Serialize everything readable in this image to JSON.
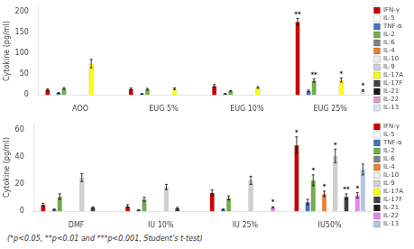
{
  "chart_data": [
    {
      "type": "bar",
      "categories": [
        "AOO",
        "EUG 5%",
        "EUG 10%",
        "EUG 25%"
      ],
      "y_label": "Cytokine (pg/ml)",
      "ylim": [
        0,
        210
      ],
      "yticks": [
        0,
        50,
        100,
        150,
        200
      ],
      "grid": false,
      "legend": "right",
      "series": [
        {
          "name": "IFN-γ",
          "color": "#cc0000",
          "values": [
            13,
            15,
            22,
            175
          ],
          "errors": [
            2,
            2,
            3,
            8
          ]
        },
        {
          "name": "IL-5",
          "color": "#ffffff",
          "values": [
            0,
            0,
            0,
            0
          ],
          "errors": [
            0,
            0,
            0,
            0
          ]
        },
        {
          "name": "TNF-α",
          "color": "#4472c4",
          "values": [
            5,
            3,
            3,
            10
          ],
          "errors": [
            1,
            0.5,
            0.5,
            2
          ]
        },
        {
          "name": "IL-2",
          "color": "#70ad47",
          "values": [
            16,
            14,
            10,
            35
          ],
          "errors": [
            2,
            2,
            1,
            4
          ]
        },
        {
          "name": "IL-6",
          "color": "#808080",
          "values": [
            0,
            0,
            0,
            0
          ],
          "errors": [
            0,
            0,
            0,
            0
          ]
        },
        {
          "name": "IL-4",
          "color": "#ed7d31",
          "values": [
            0,
            0,
            0,
            0
          ],
          "errors": [
            0,
            0,
            0,
            0
          ]
        },
        {
          "name": "IL-10",
          "color": "#eeeeee",
          "values": [
            0,
            0,
            0,
            0
          ],
          "errors": [
            0,
            0,
            0,
            0
          ]
        },
        {
          "name": "IL-9",
          "color": "#d0d0d0",
          "values": [
            0,
            0,
            0,
            0
          ],
          "errors": [
            0,
            0,
            0,
            0
          ]
        },
        {
          "name": "IL-17A",
          "color": "#ffff00",
          "values": [
            75,
            15,
            18,
            36
          ],
          "errors": [
            10,
            2,
            2,
            5
          ]
        },
        {
          "name": "IL-17F",
          "color": "#404040",
          "values": [
            0,
            0,
            0,
            0
          ],
          "errors": [
            0,
            0,
            0,
            0
          ]
        },
        {
          "name": "IL-21",
          "color": "#1a1a1a",
          "values": [
            0,
            0,
            0,
            0
          ],
          "errors": [
            0,
            0,
            0,
            0
          ]
        },
        {
          "name": "IL-22",
          "color": "#d9a0c8",
          "values": [
            0,
            0,
            0,
            0
          ],
          "errors": [
            0,
            0,
            0,
            0
          ]
        },
        {
          "name": "IL-13",
          "color": "#dce6f1",
          "values": [
            0,
            0,
            0,
            11
          ],
          "errors": [
            0,
            0,
            0,
            2
          ]
        }
      ],
      "annotations": [
        {
          "category": "EUG 25%",
          "series": "IFN-γ",
          "text": "**"
        },
        {
          "category": "EUG 25%",
          "series": "IL-2",
          "text": "**"
        },
        {
          "category": "EUG 25%",
          "series": "IL-17A",
          "text": "*"
        },
        {
          "category": "EUG 25%",
          "series": "IL-13",
          "text": "*"
        }
      ]
    },
    {
      "type": "bar",
      "categories": [
        "DMF",
        "IU 10%",
        "IU 25%",
        "IU50%"
      ],
      "y_label": "Cytokine (pg/ml)",
      "ylim": [
        0,
        65
      ],
      "yticks": [
        0,
        20,
        40,
        60
      ],
      "grid": false,
      "legend": "right",
      "series": [
        {
          "name": "IFN-γ",
          "color": "#cc0000",
          "values": [
            5,
            4,
            14,
            49
          ],
          "errors": [
            1,
            1,
            2,
            6
          ]
        },
        {
          "name": "IL-5",
          "color": "#ffffff",
          "values": [
            0,
            0,
            0,
            0
          ],
          "errors": [
            0,
            0,
            0,
            0
          ]
        },
        {
          "name": "TNF-α",
          "color": "#4472c4",
          "values": [
            1.5,
            1,
            1.5,
            7
          ],
          "errors": [
            0.3,
            0.2,
            0.3,
            2
          ]
        },
        {
          "name": "IL-2",
          "color": "#70ad47",
          "values": [
            11,
            9,
            10,
            23
          ],
          "errors": [
            2,
            1.5,
            1.5,
            4
          ]
        },
        {
          "name": "IL-6",
          "color": "#808080",
          "values": [
            0,
            0,
            0,
            0
          ],
          "errors": [
            0,
            0,
            0,
            0
          ]
        },
        {
          "name": "IL-4",
          "color": "#ed7d31",
          "values": [
            0,
            0,
            0,
            13
          ],
          "errors": [
            0,
            0,
            0,
            2
          ]
        },
        {
          "name": "IL-10",
          "color": "#eeeeee",
          "values": [
            0,
            0,
            0,
            0
          ],
          "errors": [
            0,
            0,
            0,
            0
          ]
        },
        {
          "name": "IL-9",
          "color": "#d0d0d0",
          "values": [
            25,
            18,
            23,
            41
          ],
          "errors": [
            3,
            2,
            3,
            5
          ]
        },
        {
          "name": "IL-17A",
          "color": "#ffff00",
          "values": [
            0,
            0,
            0,
            0
          ],
          "errors": [
            0,
            0,
            0,
            0
          ]
        },
        {
          "name": "IL-17F",
          "color": "#404040",
          "values": [
            3,
            2.5,
            0,
            11
          ],
          "errors": [
            0.5,
            0.5,
            0,
            2
          ]
        },
        {
          "name": "IL-21",
          "color": "#1a1a1a",
          "values": [
            0,
            0,
            0,
            0
          ],
          "errors": [
            0,
            0,
            0,
            0
          ]
        },
        {
          "name": "IL-22",
          "color": "#ee82ee",
          "values": [
            0,
            0,
            3,
            12
          ],
          "errors": [
            0,
            0,
            0.5,
            2
          ]
        },
        {
          "name": "IL-13",
          "color": "#aec6e8",
          "values": [
            0,
            0,
            0,
            31
          ],
          "errors": [
            0,
            0,
            0,
            4
          ]
        }
      ],
      "annotations": [
        {
          "category": "IU50%",
          "series": "IFN-γ",
          "text": "*"
        },
        {
          "category": "IU50%",
          "series": "IL-2",
          "text": "*"
        },
        {
          "category": "IU50%",
          "series": "IL-4",
          "text": "*"
        },
        {
          "category": "IU50%",
          "series": "IL-9",
          "text": "*"
        },
        {
          "category": "IU 25%",
          "series": "IL-22",
          "text": "*"
        },
        {
          "category": "IU50%",
          "series": "IL-17F",
          "text": "**"
        },
        {
          "category": "IU50%",
          "series": "IL-22",
          "text": "*"
        }
      ]
    }
  ],
  "footnote": "(*p<0.05, **p<0.01 and ***p<0.001, Student’s t-test)"
}
